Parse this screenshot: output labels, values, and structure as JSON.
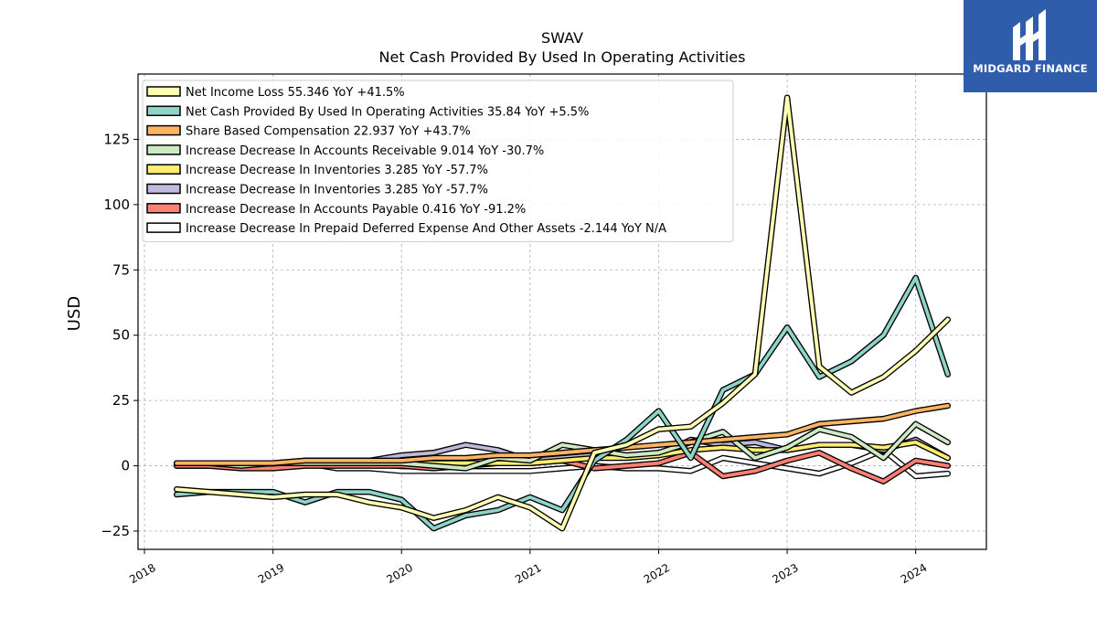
{
  "brand": {
    "name": "MIDGARD FINANCE",
    "color": "#2f5dab"
  },
  "chart_data": {
    "type": "line",
    "title": "SWAV",
    "subtitle": "Net Cash Provided By Used In Operating Activities",
    "xlabel": "",
    "ylabel": "USD",
    "xlim": [
      2017.95,
      2024.55
    ],
    "ylim": [
      -32,
      150
    ],
    "x_ticks": [
      2018,
      2019,
      2020,
      2021,
      2022,
      2023,
      2024
    ],
    "y_ticks": [
      -25,
      0,
      25,
      50,
      75,
      100,
      125
    ],
    "grid": true,
    "legend_position": "top-left",
    "x": [
      2018.25,
      2018.5,
      2018.75,
      2019.0,
      2019.25,
      2019.5,
      2019.75,
      2020.0,
      2020.25,
      2020.5,
      2020.75,
      2021.0,
      2021.25,
      2021.5,
      2021.75,
      2022.0,
      2022.25,
      2022.5,
      2022.75,
      2023.0,
      2023.25,
      2023.5,
      2023.75,
      2024.0,
      2024.25
    ],
    "series": [
      {
        "name": "Net Income Loss",
        "legend": "Net Income Loss  55.346 YoY +41.5%",
        "color": "#ffffb3",
        "values": [
          -9,
          -10,
          -11,
          -12,
          -11,
          -11,
          -14,
          -16,
          -20,
          -17,
          -12,
          -16,
          -24,
          5,
          8,
          14,
          15,
          24,
          35,
          141,
          38,
          28,
          34,
          44,
          56
        ]
      },
      {
        "name": "Net Cash Provided By Used In Operating Activities",
        "legend": "Net Cash Provided By Used In Operating Activities  35.84 YoY +5.5%",
        "color": "#8dd3c7",
        "values": [
          -11,
          -10,
          -10,
          -10,
          -14,
          -10,
          -10,
          -13,
          -24,
          -19,
          -17,
          -12,
          -17,
          2,
          10,
          21,
          3,
          29,
          35,
          53,
          34,
          40,
          50,
          72,
          35
        ]
      },
      {
        "name": "Share Based Compensation",
        "legend": "Share Based Compensation  22.937 YoY +43.7%",
        "color": "#fdb462",
        "values": [
          1,
          1,
          1,
          1,
          2,
          2,
          2,
          2,
          3,
          3,
          4,
          4,
          5,
          6,
          7,
          8,
          9,
          10,
          11,
          12,
          16,
          17,
          18,
          21,
          23
        ]
      },
      {
        "name": "Increase Decrease In Accounts Receivable",
        "legend": "Increase Decrease In Accounts Receivable  9.014 YoY -30.7%",
        "color": "#ccebc5",
        "values": [
          1,
          1,
          0,
          1,
          1,
          1,
          1,
          1,
          0,
          -1,
          3,
          2,
          8,
          6,
          4,
          5,
          9,
          13,
          3,
          7,
          14,
          11,
          3,
          16,
          9
        ]
      },
      {
        "name": "Increase Decrease In Inventories",
        "legend": "Increase Decrease In Inventories  3.285 YoY -57.7%",
        "color": "#ffed6f",
        "values": [
          1,
          1,
          1,
          1,
          1,
          1,
          1,
          1,
          1,
          1,
          1,
          1,
          2,
          3,
          3,
          4,
          6,
          7,
          6,
          6,
          8,
          8,
          7,
          9,
          3
        ]
      },
      {
        "name": "Increase Decrease In Inventories",
        "legend": "Increase Decrease In Inventories  3.285 YoY -57.7%",
        "color": "#bebada",
        "values": [
          1,
          1,
          1,
          1,
          2,
          2,
          2,
          4,
          5,
          8,
          6,
          2,
          3,
          4,
          4,
          4,
          10,
          8,
          9,
          6,
          8,
          8,
          6,
          10,
          3
        ]
      },
      {
        "name": "Increase Decrease In Accounts Payable",
        "legend": "Increase Decrease In Accounts Payable  0.416 YoY -91.2%",
        "color": "#fb8072",
        "values": [
          0,
          0,
          -1,
          -1,
          0,
          0,
          0,
          0,
          -1,
          0,
          1,
          1,
          2,
          -1,
          0,
          1,
          5,
          -4,
          -2,
          2,
          5,
          -1,
          -6,
          2,
          0
        ]
      },
      {
        "name": "Increase Decrease In Prepaid Deferred Expense And Other Assets",
        "legend": "Increase Decrease In Prepaid Deferred Expense And Other Assets  -2.144 YoY N/A",
        "color": "#ffffff",
        "values": [
          0,
          0,
          0,
          0,
          1,
          -1,
          -1,
          -2,
          -2,
          -2,
          -2,
          -2,
          -1,
          0,
          -1,
          -1,
          -2,
          3,
          1,
          -1,
          -3,
          1,
          6,
          -4,
          -3
        ]
      }
    ]
  }
}
